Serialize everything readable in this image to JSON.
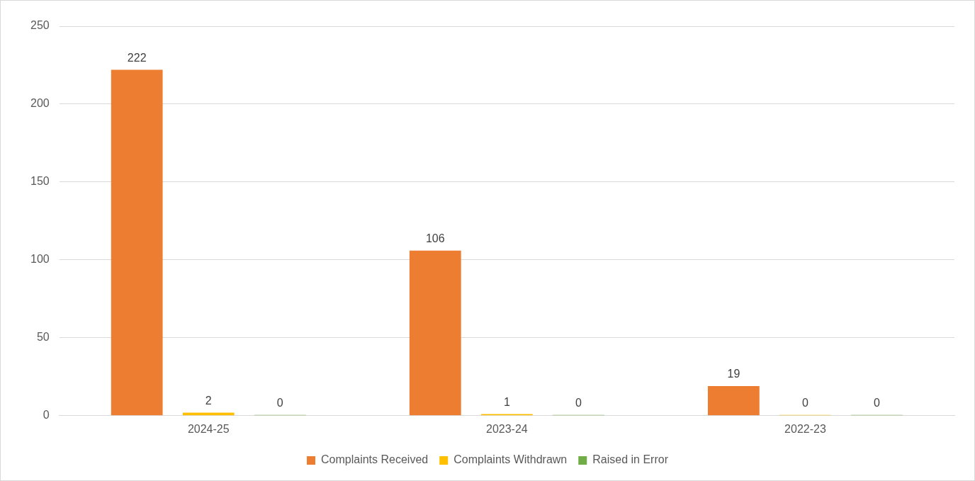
{
  "chart_data": {
    "type": "bar",
    "categories": [
      "2024-25",
      "2023-24",
      "2022-23"
    ],
    "series": [
      {
        "name": "Complaints Received",
        "color": "#ed7d31",
        "values": [
          222,
          106,
          19
        ]
      },
      {
        "name": "Complaints Withdrawn",
        "color": "#ffc000",
        "values": [
          2,
          1,
          0
        ]
      },
      {
        "name": "Raised in Error",
        "color": "#70ad47",
        "values": [
          0,
          0,
          0
        ]
      }
    ],
    "ylim": [
      0,
      250
    ],
    "yticks": [
      0,
      50,
      100,
      150,
      200,
      250
    ],
    "grid": "y",
    "legend": "bottom",
    "data_labels": true
  }
}
